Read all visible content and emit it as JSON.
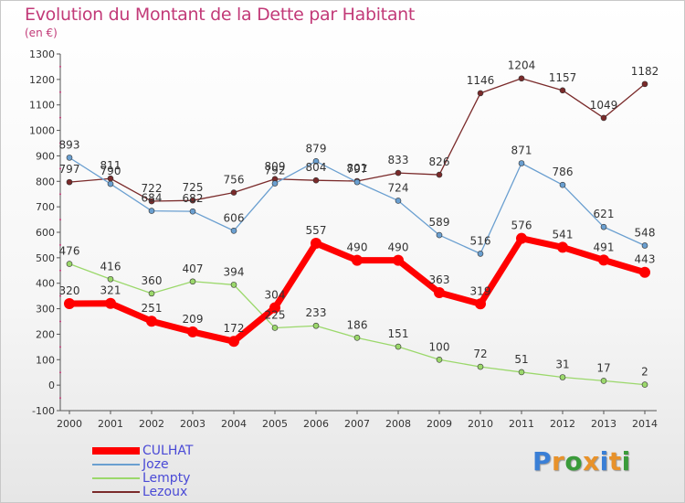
{
  "title": "Evolution du Montant de la Dette par Habitant",
  "unit_label": "(en €)",
  "logo": {
    "text": "Proxiti",
    "letter_colors": [
      "#3a7fd6",
      "#e8922a",
      "#3a9b3a",
      "#e8922a",
      "#3a7fd6",
      "#e8922a",
      "#3a9b3a"
    ]
  },
  "chart_data": {
    "type": "line",
    "x": [
      2000,
      2001,
      2002,
      2003,
      2004,
      2005,
      2006,
      2007,
      2008,
      2009,
      2010,
      2011,
      2012,
      2013,
      2014
    ],
    "ylim": [
      -100,
      1300
    ],
    "yticks": [
      -100,
      0,
      100,
      200,
      300,
      400,
      500,
      600,
      700,
      800,
      900,
      1000,
      1100,
      1200,
      1300
    ],
    "grid": false,
    "legend_position": "bottom-left",
    "series": [
      {
        "name": "CULHAT",
        "color": "#ff0000",
        "values": [
          320,
          321,
          251,
          209,
          172,
          304,
          557,
          490,
          490,
          363,
          319,
          576,
          541,
          491,
          443
        ]
      },
      {
        "name": "Joze",
        "color": "#6a9fd0",
        "values": [
          893,
          790,
          684,
          682,
          606,
          792,
          879,
          797,
          724,
          589,
          516,
          871,
          786,
          621,
          548
        ]
      },
      {
        "name": "Lempty",
        "color": "#9bd86b",
        "values": [
          476,
          416,
          360,
          407,
          394,
          225,
          233,
          186,
          151,
          100,
          72,
          51,
          31,
          17,
          2
        ]
      },
      {
        "name": "Lezoux",
        "color": "#7a2a2a",
        "values": [
          797,
          811,
          722,
          725,
          756,
          809,
          804,
          801,
          833,
          826,
          1146,
          1204,
          1157,
          1049,
          1182
        ]
      }
    ]
  }
}
